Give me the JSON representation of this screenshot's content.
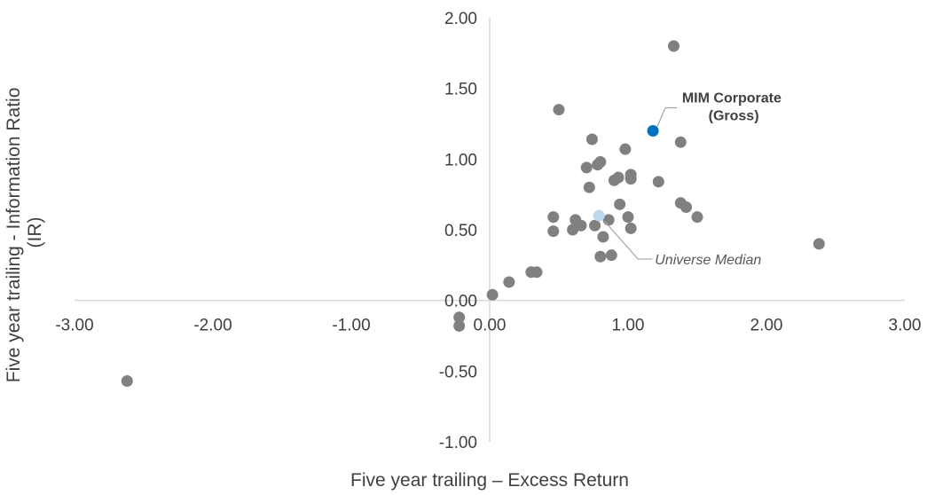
{
  "chart_data": {
    "type": "scatter",
    "xlabel": "Five year trailing – Excess Return",
    "ylabel": "Five year trailing - Information Ratio (IR)",
    "ylabel_lines": [
      "Five year trailing - Information Ratio",
      "(IR)"
    ],
    "xlim": [
      -3.0,
      3.0
    ],
    "ylim": [
      -1.0,
      2.0
    ],
    "x_ticks": [
      "-3.00",
      "-2.00",
      "-1.00",
      "0.00",
      "1.00",
      "2.00",
      "3.00"
    ],
    "y_ticks": [
      "2.00",
      "1.50",
      "1.00",
      "0.50",
      "0.00",
      "-0.50",
      "-1.00"
    ],
    "grid": false,
    "colors": {
      "universe": "#808080",
      "highlight": "#0070C0",
      "median": "#BDD7EE",
      "axis": "#D9D9D9",
      "leader": "#A6A6A6"
    },
    "series": [
      {
        "role": "universe",
        "points": [
          [
            -2.62,
            -0.57
          ],
          [
            -0.22,
            -0.12
          ],
          [
            -0.22,
            -0.18
          ],
          [
            0.02,
            0.04
          ],
          [
            0.14,
            0.13
          ],
          [
            0.3,
            0.2
          ],
          [
            0.34,
            0.2
          ],
          [
            0.46,
            0.59
          ],
          [
            0.46,
            0.49
          ],
          [
            0.5,
            1.35
          ],
          [
            0.6,
            0.5
          ],
          [
            0.62,
            0.57
          ],
          [
            0.66,
            0.53
          ],
          [
            0.7,
            0.94
          ],
          [
            0.72,
            0.8
          ],
          [
            0.74,
            1.14
          ],
          [
            0.76,
            0.53
          ],
          [
            0.78,
            0.96
          ],
          [
            0.8,
            0.98
          ],
          [
            0.8,
            0.31
          ],
          [
            0.82,
            0.45
          ],
          [
            0.86,
            0.57
          ],
          [
            0.88,
            0.32
          ],
          [
            0.9,
            0.85
          ],
          [
            0.93,
            0.87
          ],
          [
            0.94,
            0.68
          ],
          [
            0.98,
            1.07
          ],
          [
            1.0,
            0.59
          ],
          [
            1.02,
            0.86
          ],
          [
            1.02,
            0.89
          ],
          [
            1.02,
            0.51
          ],
          [
            1.22,
            0.84
          ],
          [
            1.33,
            1.8
          ],
          [
            1.38,
            1.12
          ],
          [
            1.38,
            0.69
          ],
          [
            1.42,
            0.66
          ],
          [
            1.5,
            0.59
          ],
          [
            2.38,
            0.4
          ]
        ]
      },
      {
        "role": "highlight",
        "name": "MIM Corporate (Gross)",
        "label_lines": [
          "MIM Corporate",
          "(Gross)"
        ],
        "points": [
          [
            1.18,
            1.2
          ]
        ]
      },
      {
        "role": "median",
        "name": "Universe Median",
        "points": [
          [
            0.79,
            0.6
          ]
        ]
      }
    ]
  }
}
